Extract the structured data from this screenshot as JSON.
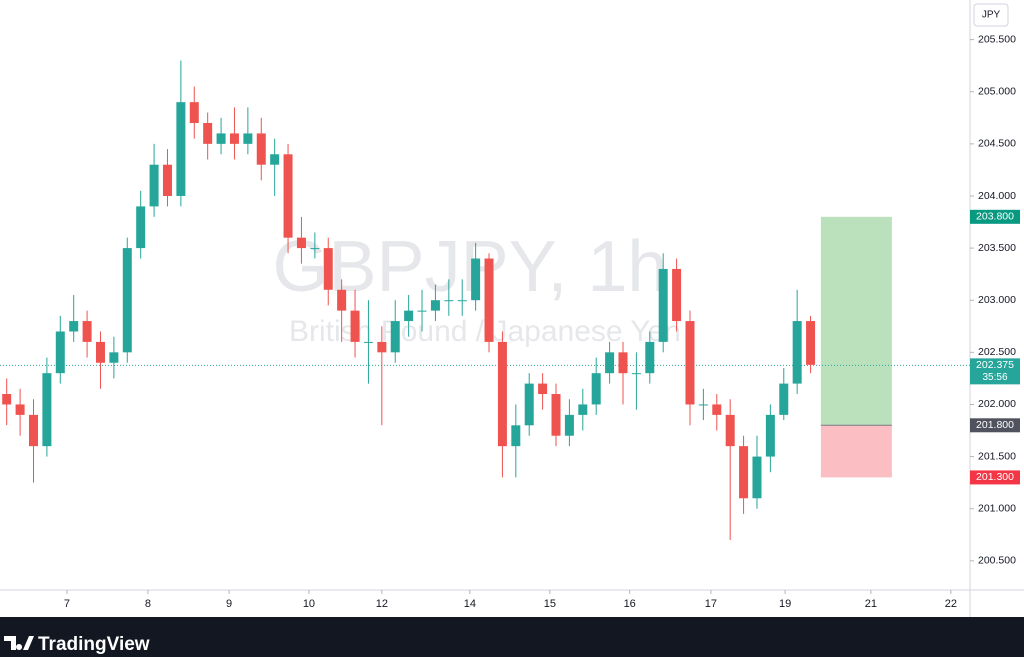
{
  "chart_data": {
    "type": "candlestick",
    "title": "GBPJPY, 1h",
    "subtitle": "British Pound / Japanese Yen",
    "y_axis_label": "JPY",
    "brand": "TradingView",
    "up_color": "#26a69a",
    "down_color": "#ef5350",
    "xlim": [
      0,
      72.4
    ],
    "xticks": [
      {
        "value": 5.0,
        "label": "7"
      },
      {
        "value": 11.04,
        "label": "8"
      },
      {
        "value": 17.1,
        "label": "9"
      },
      {
        "value": 23.06,
        "label": "10"
      },
      {
        "value": 28.5,
        "label": "12"
      },
      {
        "value": 35.07,
        "label": "14"
      },
      {
        "value": 41.04,
        "label": "15"
      },
      {
        "value": 47.0,
        "label": "16"
      },
      {
        "value": 53.06,
        "label": "17"
      },
      {
        "value": 58.6,
        "label": "19"
      },
      {
        "value": 65.0,
        "label": "21"
      },
      {
        "value": 70.97,
        "label": "22"
      }
    ],
    "ylim": [
      200.22,
      205.88
    ],
    "yticks": [
      {
        "value": 200.5,
        "label": "200.500"
      },
      {
        "value": 201.0,
        "label": "201.000"
      },
      {
        "value": 201.5,
        "label": "201.500"
      },
      {
        "value": 202.0,
        "label": "202.000"
      },
      {
        "value": 202.5,
        "label": "202.500"
      },
      {
        "value": 203.0,
        "label": "203.000"
      },
      {
        "value": 203.5,
        "label": "203.500"
      },
      {
        "value": 204.0,
        "label": "204.000"
      },
      {
        "value": 204.5,
        "label": "204.500"
      },
      {
        "value": 205.0,
        "label": "205.000"
      },
      {
        "value": 205.5,
        "label": "205.500"
      }
    ],
    "series": [
      {
        "x": [
          0.5,
          1.5,
          2.5,
          3.5,
          4.5,
          5.5,
          6.5,
          7.5,
          8.5,
          9.5,
          10.5,
          11.5,
          12.5,
          13.5,
          14.5,
          15.5,
          16.5,
          17.5,
          18.5,
          19.5,
          20.5,
          21.5,
          22.5,
          23.5,
          24.5,
          25.5,
          26.5,
          27.5,
          28.5,
          29.5,
          30.5,
          31.5,
          32.5,
          33.5,
          34.5,
          35.5,
          36.5,
          37.5,
          38.5,
          39.5,
          40.5,
          41.5,
          42.5,
          43.5,
          44.5,
          45.5,
          46.5,
          47.5,
          48.5,
          49.5,
          50.5,
          51.5,
          52.5,
          53.5,
          54.5,
          55.5,
          56.5,
          57.5,
          58.5,
          59.5,
          60.5
        ],
        "open": [
          202.1,
          202.0,
          201.9,
          201.6,
          202.3,
          202.7,
          202.8,
          202.6,
          202.4,
          202.5,
          203.5,
          203.9,
          204.3,
          204.0,
          204.9,
          204.7,
          204.5,
          204.6,
          204.5,
          204.6,
          204.3,
          204.4,
          203.6,
          203.5,
          203.5,
          203.1,
          202.9,
          202.6,
          202.6,
          202.5,
          202.8,
          202.9,
          202.9,
          203.0,
          203.0,
          203.0,
          203.4,
          202.6,
          201.6,
          201.8,
          202.2,
          202.1,
          201.7,
          201.9,
          202.0,
          202.3,
          202.5,
          202.3,
          202.3,
          202.6,
          203.3,
          202.8,
          202.0,
          202.0,
          201.9,
          201.6,
          201.1,
          201.5,
          201.9,
          202.2,
          202.8
        ],
        "high": [
          202.25,
          202.15,
          202.05,
          202.45,
          202.85,
          203.05,
          202.9,
          202.7,
          202.65,
          203.6,
          204.05,
          204.5,
          204.45,
          205.3,
          205.05,
          204.8,
          204.75,
          204.85,
          204.85,
          204.75,
          204.55,
          204.5,
          203.8,
          203.65,
          203.6,
          203.2,
          203.1,
          203.0,
          202.75,
          203.0,
          203.05,
          203.1,
          203.15,
          203.2,
          203.2,
          203.55,
          203.45,
          202.7,
          202.0,
          202.3,
          202.3,
          202.2,
          202.05,
          202.15,
          202.45,
          202.6,
          202.6,
          202.5,
          202.7,
          203.45,
          203.4,
          202.9,
          202.15,
          202.1,
          202.05,
          201.7,
          201.7,
          202.0,
          202.35,
          203.1,
          202.85
        ],
        "low": [
          201.8,
          201.7,
          201.25,
          201.5,
          202.2,
          202.6,
          202.45,
          202.15,
          202.25,
          202.4,
          203.4,
          203.8,
          203.9,
          203.9,
          204.55,
          204.35,
          204.4,
          204.35,
          204.4,
          204.15,
          204.0,
          203.45,
          203.35,
          203.4,
          202.95,
          202.6,
          202.45,
          202.2,
          201.8,
          202.4,
          202.65,
          202.7,
          202.8,
          202.85,
          202.85,
          202.9,
          202.5,
          201.3,
          201.3,
          201.7,
          201.95,
          201.6,
          201.6,
          201.75,
          201.9,
          202.2,
          202.0,
          201.95,
          202.2,
          202.5,
          202.7,
          201.8,
          201.85,
          201.75,
          200.7,
          200.95,
          201.0,
          201.35,
          201.85,
          202.1,
          202.3
        ],
        "close": [
          202.0,
          201.9,
          201.6,
          202.3,
          202.7,
          202.8,
          202.6,
          202.4,
          202.5,
          203.5,
          203.9,
          204.3,
          204.0,
          204.9,
          204.7,
          204.5,
          204.6,
          204.5,
          204.6,
          204.3,
          204.4,
          203.6,
          203.5,
          203.5,
          203.1,
          202.9,
          202.6,
          202.6,
          202.5,
          202.8,
          202.9,
          202.9,
          203.0,
          203.0,
          203.0,
          203.4,
          202.6,
          201.6,
          201.8,
          202.2,
          202.1,
          201.7,
          201.9,
          202.0,
          202.3,
          202.5,
          202.3,
          202.3,
          202.6,
          203.3,
          202.8,
          202.0,
          202.0,
          201.9,
          201.6,
          201.1,
          201.5,
          201.9,
          202.2,
          202.8,
          202.38
        ]
      }
    ],
    "last_price": {
      "value": 202.375,
      "label": "202.375"
    },
    "countdown": "35:56",
    "position": {
      "x_start": 61.27,
      "x_end": 66.57,
      "target": {
        "value": 203.8,
        "label": "203.800"
      },
      "entry": {
        "value": 201.8,
        "label": "201.800"
      },
      "stop": {
        "value": 201.3,
        "label": "201.300"
      }
    }
  }
}
